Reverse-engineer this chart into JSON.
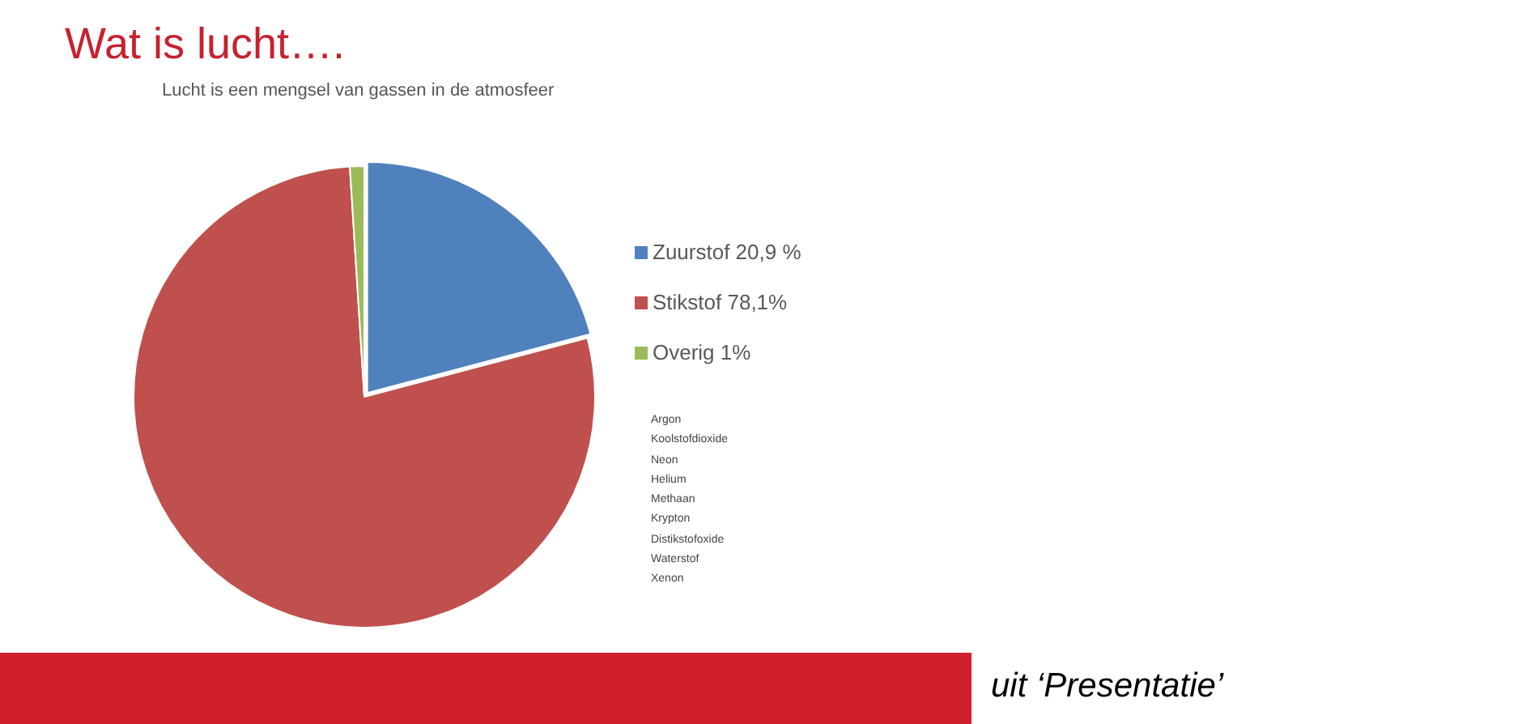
{
  "chart_data": {
    "type": "pie",
    "title": "Wat is lucht….",
    "subtitle": "Lucht is een mengsel van gassen in de atmosfeer",
    "categories": [
      "Zuurstof 20,9 %",
      "Stikstof 78,1%",
      "Overig 1%"
    ],
    "values": [
      20.9,
      78.1,
      1
    ],
    "colors": [
      "#4f81bd",
      "#c0504d",
      "#9bbb59"
    ],
    "legend": "right",
    "annotations": [
      "Argon",
      "Koolstofdioxide",
      "Neon",
      "Helium",
      "Methaan",
      "Krypton",
      "Distikstofoxide",
      "Waterstof",
      "Xenon",
      "uit ‘Presentatie’"
    ]
  }
}
